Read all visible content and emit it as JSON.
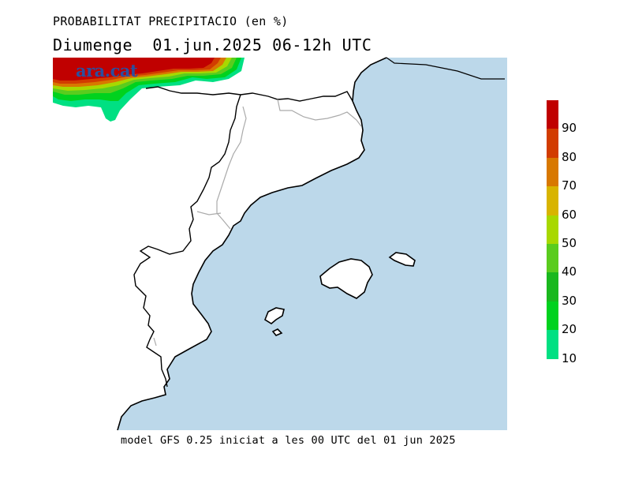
{
  "header": {
    "title": "PROBABILITAT PRECIPITACIO (en %)",
    "subtitle": "Diumenge  01.jun.2025 06-12h UTC"
  },
  "footer": {
    "model_note": "model GFS 0.25 iniciat a les 00 UTC del 01 jun 2025"
  },
  "watermark": {
    "text": "ara.cat",
    "color": "#2b4f9e"
  },
  "colors": {
    "sea": "#bcd8ea",
    "land": "#ffffff",
    "coast": "#000000",
    "borders": "#aaaaaa"
  },
  "legend": {
    "labels": [
      "90",
      "80",
      "70",
      "60",
      "50",
      "40",
      "30",
      "20",
      "10"
    ],
    "colors": [
      "#c00000",
      "#d23c00",
      "#d87800",
      "#d8b400",
      "#a8d800",
      "#5acc1e",
      "#1ab81e",
      "#00d21e",
      "#00e082"
    ]
  },
  "precip_areas": [
    {
      "level": "90-100",
      "color": "#c00000"
    },
    {
      "level": "80-90",
      "color": "#d23c00"
    },
    {
      "level": "70-80",
      "color": "#d87800"
    },
    {
      "level": "50-60",
      "color": "#a8d800"
    },
    {
      "level": "40-50",
      "color": "#5acc1e"
    },
    {
      "level": "20-30",
      "color": "#00d21e"
    },
    {
      "level": "10-20",
      "color": "#00e082"
    }
  ]
}
